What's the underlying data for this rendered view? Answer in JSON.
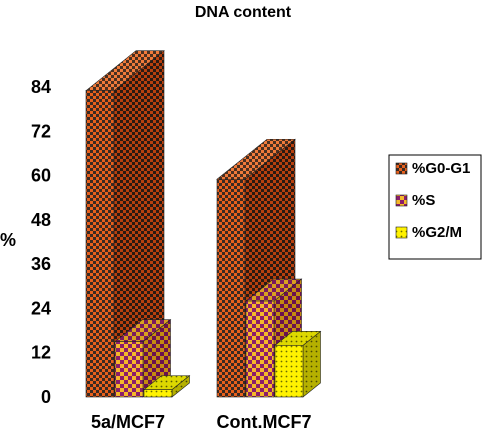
{
  "chart_data": {
    "type": "bar",
    "title": "DNA content",
    "xlabel": "",
    "ylabel": "%",
    "ylim": [
      0,
      84
    ],
    "yticks": [
      0,
      12,
      24,
      36,
      48,
      60,
      72,
      84
    ],
    "categories": [
      "5a/MCF7",
      "Cont.MCF7"
    ],
    "series": [
      {
        "name": "%G0-G1",
        "values": [
          83,
          59
        ],
        "color": "#E8601C"
      },
      {
        "name": "%S",
        "values": [
          15,
          26
        ],
        "color": "#F5A623"
      },
      {
        "name": "%G2/M",
        "values": [
          2,
          14
        ],
        "color": "#FFF200"
      }
    ],
    "legend_position": "right",
    "style": "3d-clustered-bar",
    "grid": false
  }
}
